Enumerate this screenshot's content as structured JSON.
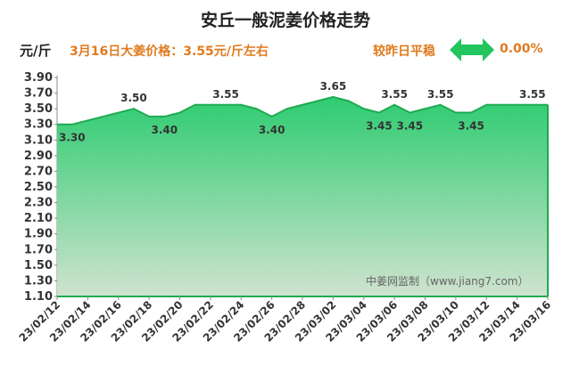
{
  "header": {
    "title": "安丘一般泥姜价格走势",
    "unit": "元/斤",
    "headline": "3月16日大姜价格：3.55元/斤左右",
    "compare_label": "较昨日平稳",
    "change_value": "0.00%",
    "arrow_icon": "double-arrow-icon",
    "arrow_color": "#22c55e"
  },
  "watermark": "中姜网监制（www.jiang7.com）",
  "colors": {
    "line": "#1faa50",
    "fill_top": "#2ecc71",
    "fill_bottom": "#cfe6cf"
  },
  "chart_data": {
    "type": "area",
    "ylim": [
      1.1,
      3.9
    ],
    "yticks": [
      "1.10",
      "1.30",
      "1.50",
      "1.70",
      "1.90",
      "2.10",
      "2.30",
      "2.50",
      "2.70",
      "2.90",
      "3.10",
      "3.30",
      "3.50",
      "3.70",
      "3.90"
    ],
    "xticks": [
      "23/02/12",
      "23/02/14",
      "23/02/16",
      "23/02/18",
      "23/02/20",
      "23/02/22",
      "23/02/24",
      "23/02/26",
      "23/02/28",
      "23/03/02",
      "23/03/04",
      "23/03/06",
      "23/03/08",
      "23/03/10",
      "23/03/12",
      "23/03/14",
      "23/03/16"
    ],
    "x": [
      "23/02/12",
      "23/02/13",
      "23/02/14",
      "23/02/15",
      "23/02/16",
      "23/02/17",
      "23/02/18",
      "23/02/19",
      "23/02/20",
      "23/02/21",
      "23/02/22",
      "23/02/23",
      "23/02/24",
      "23/02/25",
      "23/02/26",
      "23/02/27",
      "23/02/28",
      "23/03/01",
      "23/03/02",
      "23/03/03",
      "23/03/04",
      "23/03/05",
      "23/03/06",
      "23/03/07",
      "23/03/08",
      "23/03/09",
      "23/03/10",
      "23/03/11",
      "23/03/12",
      "23/03/13",
      "23/03/14",
      "23/03/15",
      "23/03/16"
    ],
    "values": [
      3.3,
      3.3,
      3.35,
      3.4,
      3.45,
      3.5,
      3.4,
      3.4,
      3.45,
      3.55,
      3.55,
      3.55,
      3.55,
      3.5,
      3.4,
      3.5,
      3.55,
      3.6,
      3.65,
      3.6,
      3.5,
      3.45,
      3.55,
      3.45,
      3.5,
      3.55,
      3.45,
      3.45,
      3.55,
      3.55,
      3.55,
      3.55,
      3.55
    ],
    "labels": [
      {
        "i": 0,
        "text": "3.30",
        "pos": "below"
      },
      {
        "i": 5,
        "text": "3.50",
        "pos": "above"
      },
      {
        "i": 7,
        "text": "3.40",
        "pos": "below"
      },
      {
        "i": 11,
        "text": "3.55",
        "pos": "above"
      },
      {
        "i": 14,
        "text": "3.40",
        "pos": "below"
      },
      {
        "i": 18,
        "text": "3.65",
        "pos": "above"
      },
      {
        "i": 21,
        "text": "3.45",
        "pos": "below"
      },
      {
        "i": 22,
        "text": "3.55",
        "pos": "above"
      },
      {
        "i": 23,
        "text": "3.45",
        "pos": "below"
      },
      {
        "i": 25,
        "text": "3.55",
        "pos": "above"
      },
      {
        "i": 27,
        "text": "3.45",
        "pos": "below"
      },
      {
        "i": 31,
        "text": "3.55",
        "pos": "above"
      }
    ]
  }
}
